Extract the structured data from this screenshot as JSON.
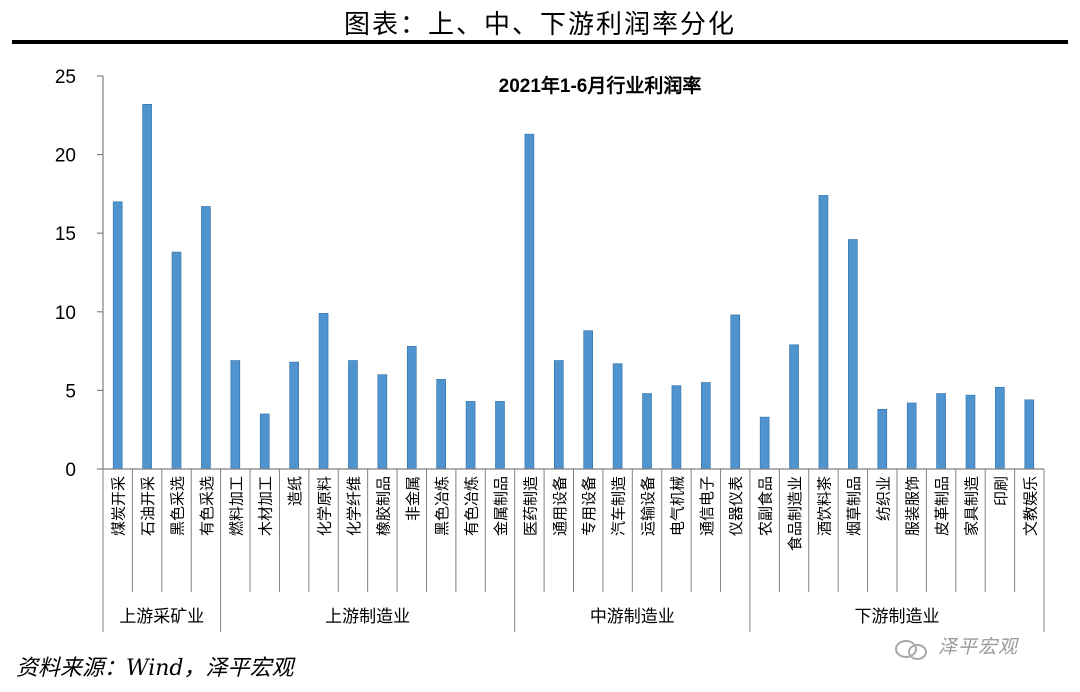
{
  "header": {
    "title": "图表：上、中、下游利润率分化",
    "source": "资料来源：Wind，泽平宏观",
    "watermark": "泽平宏观"
  },
  "chart_data": {
    "type": "bar",
    "title": "2021年1-6月行业利润率",
    "xlabel": "",
    "ylabel": "",
    "ylim": [
      0,
      25
    ],
    "yticks": [
      "0",
      "5",
      "10",
      "15",
      "20",
      "25"
    ],
    "grid": false,
    "legend": "none",
    "bar_color": "#4f93cf",
    "categories": [
      "煤炭开采",
      "石油开采",
      "黑色采选",
      "有色采选",
      "燃料加工",
      "木材加工",
      "造纸",
      "化学原料",
      "化学纤维",
      "橡胶制品",
      "非金属",
      "黑色冶炼",
      "有色冶炼",
      "金属制品",
      "医药制造",
      "通用设备",
      "专用设备",
      "汽车制造",
      "运输设备",
      "电气机械",
      "通信电子",
      "仪器仪表",
      "农副食品",
      "食品制造业",
      "酒饮料茶",
      "烟草制品",
      "纺织业",
      "服装服饰",
      "皮革制品",
      "家具制造",
      "印刷",
      "文教娱乐"
    ],
    "values": [
      17.0,
      23.2,
      13.8,
      16.7,
      6.9,
      3.5,
      6.8,
      9.9,
      6.9,
      6.0,
      7.8,
      5.7,
      4.3,
      4.3,
      21.3,
      6.9,
      8.8,
      6.7,
      4.8,
      5.3,
      5.5,
      9.8,
      3.3,
      7.9,
      17.4,
      14.6,
      3.8,
      4.2,
      4.8,
      4.7,
      5.2,
      4.4
    ],
    "groups": [
      {
        "label": "上游采矿业",
        "count": 4
      },
      {
        "label": "上游制造业",
        "count": 10
      },
      {
        "label": "中游制造业",
        "count": 8
      },
      {
        "label": "下游制造业",
        "count": 10
      }
    ]
  }
}
